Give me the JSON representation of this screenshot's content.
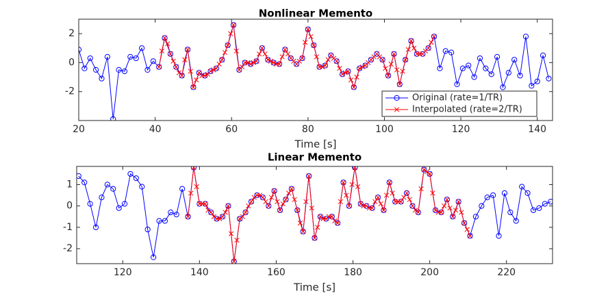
{
  "chart_data": [
    {
      "type": "line",
      "title": "Nonlinear Memento",
      "xlabel": "Time [s]",
      "xlim": [
        20,
        144
      ],
      "ylim": [
        -4,
        3
      ],
      "xticks": [
        20,
        40,
        60,
        80,
        100,
        120,
        140
      ],
      "yticks": [
        -2,
        0,
        2
      ],
      "legend": "southeast",
      "series": [
        {
          "name": "Original (rate=1/TR)",
          "color": "#0000ff",
          "marker": "o",
          "x": [
            20,
            21.5,
            23,
            24.5,
            26,
            27.5,
            29,
            30.5,
            32,
            33.5,
            35,
            36.5,
            38,
            39.5,
            41,
            42.5,
            44,
            45.5,
            47,
            48.5,
            50,
            51.5,
            53,
            54.5,
            56,
            57.5,
            59,
            60.5,
            62,
            63.5,
            65,
            66.5,
            68,
            69.5,
            71,
            72.5,
            74,
            75.5,
            77,
            78.5,
            80,
            81.5,
            83,
            84.5,
            86,
            87.5,
            89,
            90.5,
            92,
            93.5,
            95,
            96.5,
            98,
            99.5,
            101,
            102.5,
            104,
            105.5,
            107,
            108.5,
            110,
            111.5,
            113,
            114.5,
            116,
            117.5,
            119,
            120.5,
            122,
            123.5,
            125,
            126.5,
            128,
            129.5,
            131,
            132.5,
            134,
            135.5,
            137,
            138.5,
            140,
            141.5,
            143
          ],
          "values": [
            0.9,
            -0.4,
            0.3,
            -0.5,
            -1.1,
            0.4,
            -3.9,
            -0.5,
            -0.6,
            0.4,
            0.3,
            1.0,
            -0.5,
            0.1,
            -0.3,
            1.7,
            0.6,
            -0.3,
            -0.9,
            0.9,
            -1.7,
            -0.7,
            -0.9,
            -0.6,
            -0.4,
            0.2,
            1.2,
            2.6,
            -0.5,
            0.0,
            -0.1,
            0.1,
            1.0,
            0.2,
            0.0,
            -0.1,
            0.9,
            0.3,
            -0.1,
            0.3,
            2.3,
            1.2,
            -0.3,
            -0.2,
            0.5,
            0.1,
            -0.8,
            -0.6,
            -1.7,
            -0.4,
            -0.2,
            0.2,
            0.6,
            0.2,
            -0.9,
            0.6,
            -1.5,
            0.2,
            1.5,
            0.6,
            0.6,
            1.0,
            1.8,
            -0.4,
            0.8,
            0.7,
            -1.5,
            -0.4,
            -0.2,
            -1.0,
            0.3,
            -0.4,
            -0.8,
            0.4,
            -1.7,
            -0.7,
            0.2,
            -0.9,
            1.8,
            -1.6,
            -1.3,
            0.5,
            -1.1
          ]
        },
        {
          "name": "Interpolated (rate=2/TR)",
          "color": "#ff0000",
          "marker": "x",
          "x": [
            41,
            41.75,
            42.5,
            43.25,
            44,
            44.75,
            45.5,
            46.25,
            47,
            47.75,
            48.5,
            49.25,
            50,
            50.75,
            51.5,
            52.25,
            53,
            53.75,
            54.5,
            55.25,
            56,
            56.75,
            57.5,
            58.25,
            59,
            59.75,
            60.5,
            61.25,
            62,
            62.75,
            63.5,
            64.25,
            65,
            65.75,
            66.5,
            67.25,
            68,
            68.75,
            69.5,
            70.25,
            71,
            71.75,
            72.5,
            73.25,
            74,
            74.75,
            75.5,
            76.25,
            77,
            77.75,
            78.5,
            79.25,
            80,
            80.75,
            81.5,
            82.25,
            83,
            83.75,
            84.5,
            85.25,
            86,
            86.75,
            87.5,
            88.25,
            89,
            89.75,
            90.5,
            91.25,
            92,
            92.75,
            93.5,
            94.25,
            95,
            95.75,
            96.5,
            97.25,
            98,
            98.75,
            99.5,
            100.25,
            101,
            101.75,
            102.5,
            103.25,
            104,
            104.75,
            105.5,
            106.25,
            107,
            107.75,
            108.5,
            109.25,
            110,
            110.75,
            111.5,
            112.25,
            113
          ],
          "values": [
            -0.3,
            0.8,
            1.7,
            1.3,
            0.6,
            0.1,
            -0.3,
            -0.7,
            -0.9,
            0.2,
            0.9,
            -0.6,
            -1.7,
            -1.2,
            -0.7,
            -0.9,
            -0.9,
            -0.8,
            -0.6,
            -0.5,
            -0.4,
            -0.1,
            0.2,
            0.7,
            1.2,
            2.0,
            2.6,
            0.8,
            -0.5,
            -0.3,
            0.0,
            0.0,
            -0.1,
            0.0,
            0.1,
            0.6,
            1.0,
            0.6,
            0.2,
            0.1,
            0.0,
            -0.1,
            -0.1,
            0.4,
            0.9,
            0.6,
            0.3,
            0.1,
            -0.1,
            0.1,
            0.3,
            1.4,
            2.3,
            1.8,
            1.2,
            0.4,
            -0.3,
            -0.3,
            -0.2,
            0.2,
            0.5,
            0.3,
            0.1,
            -0.4,
            -0.8,
            -0.7,
            -0.6,
            -1.2,
            -1.7,
            -1.0,
            -0.4,
            -0.3,
            -0.2,
            0.0,
            0.2,
            0.4,
            0.6,
            0.4,
            0.2,
            -0.4,
            -0.9,
            -0.1,
            0.6,
            -0.5,
            -1.5,
            -0.6,
            0.2,
            0.9,
            1.5,
            1.0,
            0.6,
            0.6,
            0.6,
            0.8,
            1.0,
            1.4,
            1.8
          ]
        }
      ]
    },
    {
      "type": "line",
      "title": "Linear Memento",
      "xlabel": "Time [s]",
      "xlim": [
        108,
        232
      ],
      "ylim": [
        -2.7,
        1.85
      ],
      "xticks": [
        120,
        140,
        160,
        180,
        200,
        220
      ],
      "yticks": [
        -2,
        -1,
        0,
        1
      ],
      "series": [
        {
          "color": "#0000ff",
          "marker": "o",
          "x": [
            108.5,
            110,
            111.5,
            113,
            114.5,
            116,
            117.5,
            119,
            120.5,
            122,
            123.5,
            125,
            126.5,
            128,
            129.5,
            131,
            132.5,
            134,
            135.5,
            137,
            138.5,
            140,
            141.5,
            143,
            144.5,
            146,
            147.5,
            149,
            150.5,
            152,
            153.5,
            155,
            156.5,
            158,
            159.5,
            161,
            162.5,
            164,
            165.5,
            167,
            168.5,
            170,
            171.5,
            173,
            174.5,
            176,
            177.5,
            179,
            180.5,
            182,
            183.5,
            185,
            186.5,
            188,
            189.5,
            191,
            192.5,
            194,
            195.5,
            197,
            198.5,
            200,
            201.5,
            203,
            204.5,
            206,
            207.5,
            209,
            210.5,
            212,
            213.5,
            215,
            216.5,
            218,
            219.5,
            221,
            222.5,
            224,
            225.5,
            227,
            228.5,
            230,
            231.5
          ],
          "values": [
            1.4,
            1.1,
            0.1,
            -1.0,
            0.4,
            1.0,
            0.8,
            -0.1,
            0.1,
            1.5,
            1.3,
            0.9,
            -1.1,
            -2.4,
            -0.7,
            -0.7,
            -0.3,
            -0.4,
            0.8,
            -0.5,
            1.8,
            0.1,
            0.1,
            -0.3,
            -0.6,
            -0.5,
            0.0,
            -2.6,
            -0.6,
            -0.3,
            0.2,
            0.5,
            0.4,
            0.0,
            0.7,
            -0.2,
            0.3,
            0.8,
            -0.2,
            -1.2,
            1.4,
            -1.5,
            -0.5,
            -0.6,
            -0.5,
            -0.8,
            1.1,
            0.0,
            1.8,
            0.1,
            0.0,
            -0.1,
            0.4,
            -0.2,
            1.1,
            0.2,
            0.2,
            0.6,
            0.0,
            -0.3,
            1.7,
            1.5,
            -0.2,
            -0.3,
            0.3,
            -0.5,
            0.2,
            -0.8,
            -1.4,
            -0.5,
            0.0,
            0.4,
            0.5,
            -1.4,
            0.6,
            -0.3,
            -0.7,
            0.9,
            0.6,
            -0.2,
            -0.1,
            0.1,
            0.2
          ]
        },
        {
          "color": "#ff0000",
          "marker": "x",
          "x": [
            137,
            137.75,
            138.5,
            139.25,
            140,
            140.75,
            141.5,
            142.25,
            143,
            143.75,
            144.5,
            145.25,
            146,
            146.75,
            147.5,
            148.25,
            149,
            149.75,
            150.5,
            151.25,
            152,
            152.75,
            153.5,
            154.25,
            155,
            155.75,
            156.5,
            157.25,
            158,
            158.75,
            159.5,
            160.25,
            161,
            161.75,
            162.5,
            163.25,
            164,
            164.75,
            165.5,
            166.25,
            167,
            167.75,
            168.5,
            169.25,
            170,
            170.75,
            171.5,
            172.25,
            173,
            173.75,
            174.5,
            175.25,
            176,
            176.75,
            177.5,
            178.25,
            179,
            179.75,
            180.5,
            181.25,
            182,
            182.75,
            183.5,
            184.25,
            185,
            185.75,
            186.5,
            187.25,
            188,
            188.75,
            189.5,
            190.25,
            191,
            191.75,
            192.5,
            193.25,
            194,
            194.75,
            195.5,
            196.25,
            197,
            197.75,
            198.5,
            199.25,
            200,
            200.75,
            201.5,
            202.25,
            203,
            203.75,
            204.5,
            205.25,
            206,
            206.75,
            207.5,
            208.25,
            209,
            209.75,
            210.5
          ],
          "values": [
            -0.5,
            0.6,
            1.8,
            0.9,
            0.1,
            0.1,
            0.1,
            -0.2,
            -0.3,
            -0.5,
            -0.6,
            -0.6,
            -0.5,
            -0.3,
            0.0,
            -1.3,
            -2.6,
            -1.6,
            -0.6,
            -0.5,
            -0.3,
            0.0,
            0.2,
            0.4,
            0.5,
            0.5,
            0.4,
            0.2,
            0.0,
            0.4,
            0.7,
            0.2,
            -0.2,
            0.1,
            0.3,
            0.6,
            0.8,
            0.3,
            -0.2,
            -0.8,
            -1.2,
            0.2,
            1.4,
            -0.1,
            -1.5,
            -1.0,
            -0.5,
            -0.6,
            -0.6,
            -0.5,
            -0.5,
            -0.7,
            -0.8,
            0.2,
            1.1,
            0.5,
            0.0,
            1.0,
            1.8,
            0.9,
            0.1,
            0.0,
            0.0,
            -0.1,
            -0.1,
            0.2,
            0.4,
            0.1,
            -0.2,
            0.5,
            1.1,
            0.6,
            0.2,
            0.2,
            0.2,
            0.4,
            0.6,
            0.3,
            0.0,
            -0.2,
            -0.3,
            0.8,
            1.7,
            1.6,
            1.5,
            0.6,
            -0.2,
            -0.3,
            -0.3,
            0.0,
            0.3,
            -0.1,
            -0.5,
            -0.2,
            0.2,
            -0.3,
            -0.8,
            -1.1,
            -1.4
          ]
        }
      ]
    }
  ]
}
